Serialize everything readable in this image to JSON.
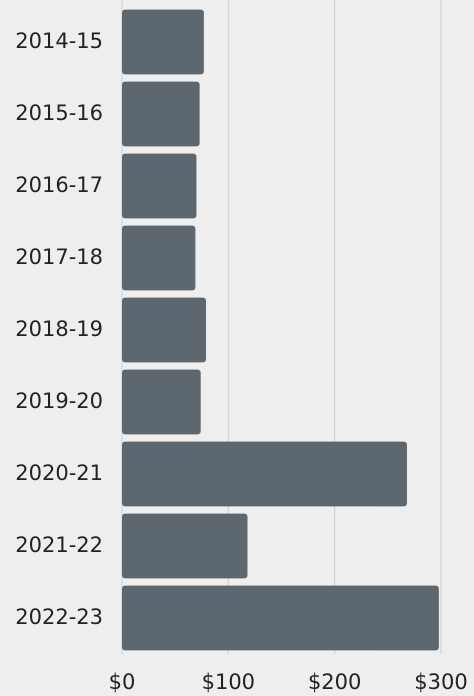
{
  "chart_data": {
    "type": "bar",
    "orientation": "horizontal",
    "categories": [
      "2014-15",
      "2015-16",
      "2016-17",
      "2017-18",
      "2018-19",
      "2019-20",
      "2020-21",
      "2021-22",
      "2022-23"
    ],
    "values": [
      77,
      73,
      70,
      69,
      79,
      74,
      268,
      118,
      298
    ],
    "color": "#5c6770",
    "xlim": [
      0,
      300
    ],
    "xticks": [
      {
        "value": 0,
        "label": "$0"
      },
      {
        "value": 100,
        "label": "$100"
      },
      {
        "value": 200,
        "label": "$200"
      },
      {
        "value": 300,
        "label": "$300"
      }
    ],
    "grid": true
  }
}
